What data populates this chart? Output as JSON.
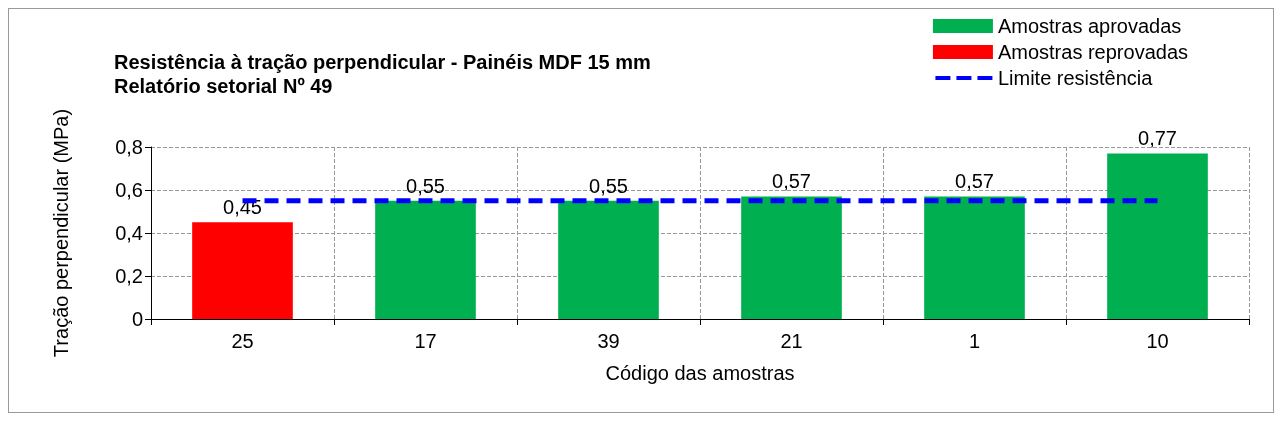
{
  "chart_data": {
    "type": "bar",
    "title": "Resistência à tração perpendicular - Painéis MDF 15 mm",
    "subtitle": "Relatório setorial Nº 49",
    "xlabel": "Código das amostras",
    "ylabel": "Tração perpendicular (MPa)",
    "categories": [
      "25",
      "17",
      "39",
      "21",
      "1",
      "10"
    ],
    "series": [
      {
        "name": "Amostras aprovadas",
        "color": "#00b050",
        "values": [
          null,
          0.55,
          0.55,
          0.57,
          0.57,
          0.77
        ],
        "value_labels": [
          null,
          "0,55",
          "0,55",
          "0,57",
          "0,57",
          "0,77"
        ]
      },
      {
        "name": "Amostras reprovadas",
        "color": "#ff0000",
        "values": [
          0.45,
          null,
          null,
          null,
          null,
          null
        ],
        "value_labels": [
          "0,45",
          null,
          null,
          null,
          null,
          null
        ]
      }
    ],
    "stacked": true,
    "ref_lines": [
      {
        "axis": "y",
        "value": 0.55,
        "label": "Limite resistência",
        "color": "#0000ff",
        "line_style": "dashed"
      }
    ],
    "ylim": [
      0,
      0.8
    ],
    "yticks": [
      0,
      {
        "value": 0.2,
        "label": "0,2"
      },
      {
        "value": 0.4,
        "label": "0,4"
      },
      {
        "value": 0.6,
        "label": "0,6"
      },
      {
        "value": 0.8,
        "label": "0,8"
      }
    ],
    "grid": true,
    "legend": "top right"
  }
}
